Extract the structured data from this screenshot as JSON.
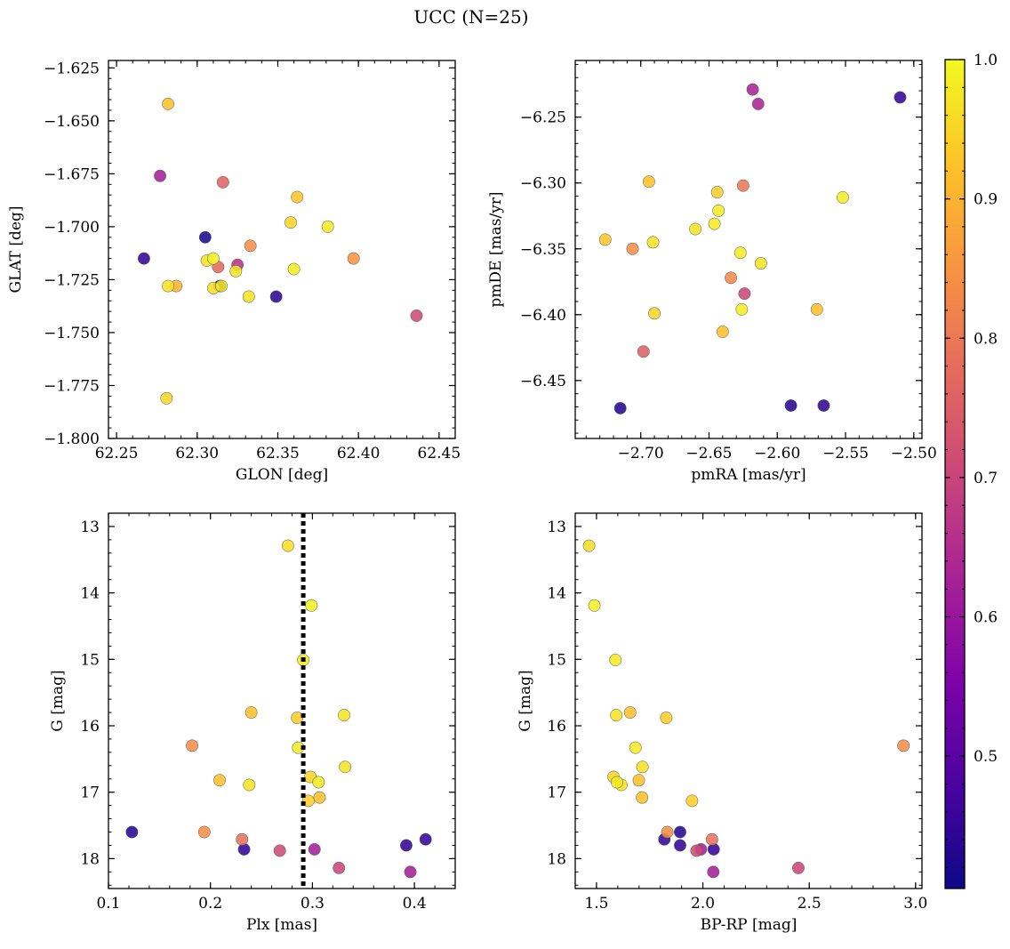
{
  "figure": {
    "suptitle": "UCC (N=25)"
  },
  "colorbar": {
    "colormap": "plasma",
    "range": [
      0.405,
      1.0
    ],
    "ticks": [
      0.5,
      0.6,
      0.7,
      0.8,
      0.9,
      1.0
    ],
    "tick_labels": [
      "0.5",
      "0.6",
      "0.7",
      "0.8",
      "0.9",
      "1.0"
    ]
  },
  "chart_data": [
    {
      "id": "glon-glat",
      "type": "scatter",
      "title": "",
      "xlabel": "GLON [deg]",
      "ylabel": "GLAT [deg]",
      "xlim": [
        62.245,
        62.46
      ],
      "ylim": [
        -1.8,
        -1.6215
      ],
      "y_inverted": false,
      "xticks": [
        62.25,
        62.3,
        62.35,
        62.4,
        62.45
      ],
      "xtick_labels": [
        "62.25",
        "62.30",
        "62.35",
        "62.40",
        "62.45"
      ],
      "yticks": [
        -1.8,
        -1.775,
        -1.75,
        -1.725,
        -1.7,
        -1.675,
        -1.65,
        -1.625
      ],
      "ytick_labels": [
        "−1.800",
        "−1.775",
        "−1.750",
        "−1.725",
        "−1.700",
        "−1.675",
        "−1.650",
        "−1.625"
      ],
      "points": [
        {
          "x": 62.282,
          "y": -1.642,
          "c": 0.92
        },
        {
          "x": 62.277,
          "y": -1.676,
          "c": 0.62
        },
        {
          "x": 62.316,
          "y": -1.679,
          "c": 0.76
        },
        {
          "x": 62.362,
          "y": -1.686,
          "c": 0.93
        },
        {
          "x": 62.358,
          "y": -1.698,
          "c": 0.95
        },
        {
          "x": 62.381,
          "y": -1.7,
          "c": 0.98
        },
        {
          "x": 62.305,
          "y": -1.705,
          "c": 0.42
        },
        {
          "x": 62.333,
          "y": -1.709,
          "c": 0.84
        },
        {
          "x": 62.267,
          "y": -1.715,
          "c": 0.45
        },
        {
          "x": 62.306,
          "y": -1.716,
          "c": 0.97
        },
        {
          "x": 62.31,
          "y": -1.715,
          "c": 0.99
        },
        {
          "x": 62.397,
          "y": -1.715,
          "c": 0.85
        },
        {
          "x": 62.313,
          "y": -1.719,
          "c": 0.77
        },
        {
          "x": 62.325,
          "y": -1.718,
          "c": 0.66
        },
        {
          "x": 62.324,
          "y": -1.721,
          "c": 0.97
        },
        {
          "x": 62.36,
          "y": -1.72,
          "c": 0.98
        },
        {
          "x": 62.282,
          "y": -1.728,
          "c": 0.97
        },
        {
          "x": 62.287,
          "y": -1.728,
          "c": 0.9
        },
        {
          "x": 62.31,
          "y": -1.729,
          "c": 0.96
        },
        {
          "x": 62.314,
          "y": -1.728,
          "c": 0.42
        },
        {
          "x": 62.315,
          "y": -1.728,
          "c": 0.98
        },
        {
          "x": 62.332,
          "y": -1.733,
          "c": 0.97
        },
        {
          "x": 62.349,
          "y": -1.733,
          "c": 0.44
        },
        {
          "x": 62.436,
          "y": -1.742,
          "c": 0.71
        },
        {
          "x": 62.281,
          "y": -1.781,
          "c": 0.95
        }
      ]
    },
    {
      "id": "pmra-pmde",
      "type": "scatter",
      "title": "",
      "xlabel": "pmRA [mas/yr]",
      "ylabel": "pmDE [mas/yr]",
      "xlim": [
        -2.748,
        -2.494
      ],
      "ylim": [
        -6.494,
        -6.207
      ],
      "y_inverted": false,
      "xticks": [
        -2.7,
        -2.65,
        -2.6,
        -2.55,
        -2.5
      ],
      "xtick_labels": [
        "−2.70",
        "−2.65",
        "−2.60",
        "−2.55",
        "−2.50"
      ],
      "yticks": [
        -6.45,
        -6.4,
        -6.35,
        -6.3,
        -6.25
      ],
      "ytick_labels": [
        "−6.45",
        "−6.40",
        "−6.35",
        "−6.30",
        "−6.25"
      ],
      "points": [
        {
          "x": -2.618,
          "y": -6.229,
          "c": 0.63
        },
        {
          "x": -2.614,
          "y": -6.24,
          "c": 0.63
        },
        {
          "x": -2.51,
          "y": -6.235,
          "c": 0.45
        },
        {
          "x": -2.694,
          "y": -6.299,
          "c": 0.92
        },
        {
          "x": -2.625,
          "y": -6.302,
          "c": 0.8
        },
        {
          "x": -2.644,
          "y": -6.307,
          "c": 0.94
        },
        {
          "x": -2.552,
          "y": -6.311,
          "c": 0.98
        },
        {
          "x": -2.643,
          "y": -6.321,
          "c": 0.98
        },
        {
          "x": -2.646,
          "y": -6.331,
          "c": 0.98
        },
        {
          "x": -2.66,
          "y": -6.335,
          "c": 0.97
        },
        {
          "x": -2.726,
          "y": -6.343,
          "c": 0.93
        },
        {
          "x": -2.691,
          "y": -6.345,
          "c": 0.97
        },
        {
          "x": -2.706,
          "y": -6.35,
          "c": 0.84
        },
        {
          "x": -2.627,
          "y": -6.353,
          "c": 0.98
        },
        {
          "x": -2.612,
          "y": -6.361,
          "c": 0.97
        },
        {
          "x": -2.634,
          "y": -6.372,
          "c": 0.83
        },
        {
          "x": -2.624,
          "y": -6.384,
          "c": 0.7
        },
        {
          "x": -2.571,
          "y": -6.396,
          "c": 0.92
        },
        {
          "x": -2.626,
          "y": -6.396,
          "c": 0.98
        },
        {
          "x": -2.69,
          "y": -6.399,
          "c": 0.95
        },
        {
          "x": -2.64,
          "y": -6.413,
          "c": 0.92
        },
        {
          "x": -2.698,
          "y": -6.428,
          "c": 0.75
        },
        {
          "x": -2.715,
          "y": -6.471,
          "c": 0.43
        },
        {
          "x": -2.59,
          "y": -6.469,
          "c": 0.43
        },
        {
          "x": -2.566,
          "y": -6.469,
          "c": 0.44
        }
      ]
    },
    {
      "id": "plx-g",
      "type": "scatter",
      "title": "",
      "xlabel": "Plx [mas]",
      "ylabel": "G [mag]",
      "xlim": [
        0.1,
        0.44
      ],
      "ylim": [
        18.45,
        12.8
      ],
      "y_inverted": true,
      "vline": {
        "x": 0.291,
        "style": "dotted",
        "color": "#000000"
      },
      "xticks": [
        0.1,
        0.2,
        0.3,
        0.4
      ],
      "xtick_labels": [
        "0.1",
        "0.2",
        "0.3",
        "0.4"
      ],
      "yticks": [
        13,
        14,
        15,
        16,
        17,
        18
      ],
      "ytick_labels": [
        "13",
        "14",
        "15",
        "16",
        "17",
        "18"
      ],
      "points": [
        {
          "x": 0.276,
          "y": 13.29,
          "c": 0.96
        },
        {
          "x": 0.299,
          "y": 14.19,
          "c": 0.99
        },
        {
          "x": 0.291,
          "y": 15.01,
          "c": 0.98
        },
        {
          "x": 0.24,
          "y": 15.8,
          "c": 0.92
        },
        {
          "x": 0.331,
          "y": 15.84,
          "c": 0.97
        },
        {
          "x": 0.285,
          "y": 15.88,
          "c": 0.94
        },
        {
          "x": 0.182,
          "y": 16.3,
          "c": 0.84
        },
        {
          "x": 0.286,
          "y": 16.33,
          "c": 0.98
        },
        {
          "x": 0.332,
          "y": 16.62,
          "c": 0.97
        },
        {
          "x": 0.298,
          "y": 16.77,
          "c": 0.95
        },
        {
          "x": 0.209,
          "y": 16.82,
          "c": 0.92
        },
        {
          "x": 0.306,
          "y": 16.85,
          "c": 0.98
        },
        {
          "x": 0.238,
          "y": 16.89,
          "c": 0.97
        },
        {
          "x": 0.307,
          "y": 17.08,
          "c": 0.92
        },
        {
          "x": 0.296,
          "y": 17.13,
          "c": 0.94
        },
        {
          "x": 0.123,
          "y": 17.6,
          "c": 0.43
        },
        {
          "x": 0.194,
          "y": 17.6,
          "c": 0.84
        },
        {
          "x": 0.231,
          "y": 17.71,
          "c": 0.79
        },
        {
          "x": 0.411,
          "y": 17.71,
          "c": 0.45
        },
        {
          "x": 0.392,
          "y": 17.8,
          "c": 0.45
        },
        {
          "x": 0.233,
          "y": 17.86,
          "c": 0.45
        },
        {
          "x": 0.302,
          "y": 17.86,
          "c": 0.62
        },
        {
          "x": 0.268,
          "y": 17.88,
          "c": 0.71
        },
        {
          "x": 0.326,
          "y": 18.14,
          "c": 0.7
        },
        {
          "x": 0.396,
          "y": 18.2,
          "c": 0.62
        }
      ]
    },
    {
      "id": "bprp-g",
      "type": "scatter",
      "title": "",
      "xlabel": "BP-RP [mag]",
      "ylabel": "G [mag]",
      "xlim": [
        1.4,
        3.03
      ],
      "ylim": [
        18.45,
        12.8
      ],
      "y_inverted": true,
      "xticks": [
        1.5,
        2.0,
        2.5,
        3.0
      ],
      "xtick_labels": [
        "1.5",
        "2.0",
        "2.5",
        "3.0"
      ],
      "yticks": [
        13,
        14,
        15,
        16,
        17,
        18
      ],
      "ytick_labels": [
        "13",
        "14",
        "15",
        "16",
        "17",
        "18"
      ],
      "points": [
        {
          "x": 1.465,
          "y": 13.29,
          "c": 0.96
        },
        {
          "x": 1.49,
          "y": 14.19,
          "c": 0.99
        },
        {
          "x": 1.589,
          "y": 15.01,
          "c": 0.98
        },
        {
          "x": 1.658,
          "y": 15.8,
          "c": 0.92
        },
        {
          "x": 1.593,
          "y": 15.84,
          "c": 0.97
        },
        {
          "x": 1.828,
          "y": 15.88,
          "c": 0.94
        },
        {
          "x": 2.943,
          "y": 16.3,
          "c": 0.84
        },
        {
          "x": 1.683,
          "y": 16.33,
          "c": 0.98
        },
        {
          "x": 1.716,
          "y": 16.62,
          "c": 0.97
        },
        {
          "x": 1.58,
          "y": 16.77,
          "c": 0.95
        },
        {
          "x": 1.699,
          "y": 16.82,
          "c": 0.92
        },
        {
          "x": 1.596,
          "y": 16.85,
          "c": 0.98
        },
        {
          "x": 1.617,
          "y": 16.89,
          "c": 0.97
        },
        {
          "x": 1.714,
          "y": 17.08,
          "c": 0.92
        },
        {
          "x": 1.949,
          "y": 17.13,
          "c": 0.94
        },
        {
          "x": 1.893,
          "y": 17.6,
          "c": 0.43
        },
        {
          "x": 1.833,
          "y": 17.6,
          "c": 0.84
        },
        {
          "x": 2.043,
          "y": 17.71,
          "c": 0.79
        },
        {
          "x": 1.819,
          "y": 17.71,
          "c": 0.45
        },
        {
          "x": 1.893,
          "y": 17.8,
          "c": 0.45
        },
        {
          "x": 2.051,
          "y": 17.86,
          "c": 0.45
        },
        {
          "x": 1.991,
          "y": 17.86,
          "c": 0.62
        },
        {
          "x": 1.97,
          "y": 17.88,
          "c": 0.71
        },
        {
          "x": 2.449,
          "y": 18.14,
          "c": 0.7
        },
        {
          "x": 2.049,
          "y": 18.2,
          "c": 0.62
        }
      ]
    }
  ]
}
